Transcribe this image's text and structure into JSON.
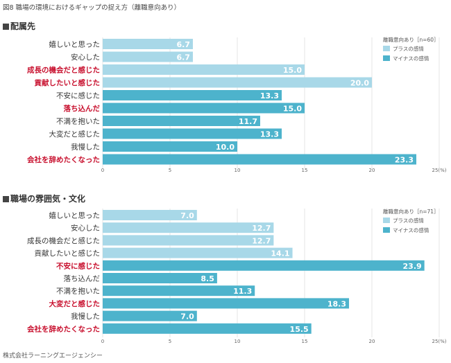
{
  "figure_title": "図8 職場の環境におけるギャップの捉え方（離職意向あり）",
  "footer": "株式会社ラーニングエージェンシー",
  "colors": {
    "plus": "#a8d8e8",
    "minus": "#4db3cc",
    "highlight": "#c8102e",
    "text": "#333333"
  },
  "legend_labels": {
    "plus": "プラスの感情",
    "minus": "マイナスの感情"
  },
  "chart_data": [
    {
      "type": "bar",
      "orientation": "horizontal",
      "title": "配属先",
      "legend_title": "離職意向あり［n=60］",
      "categories": [
        "嬉しいと思った",
        "安心した",
        "成長の機会だと感じた",
        "貢献したいと感じた",
        "不安に感じた",
        "落ち込んだ",
        "不満を抱いた",
        "大変だと感じた",
        "我慢した",
        "会社を辞めたくなった"
      ],
      "values": [
        6.7,
        6.7,
        15.0,
        20.0,
        13.3,
        15.0,
        11.7,
        13.3,
        10.0,
        23.3
      ],
      "value_labels": [
        "6.7",
        "6.7",
        "15.0",
        "20.0",
        "13.3",
        "15.0",
        "11.7",
        "13.3",
        "10.0",
        "23.3"
      ],
      "emotion": [
        "plus",
        "plus",
        "plus",
        "plus",
        "minus",
        "minus",
        "minus",
        "minus",
        "minus",
        "minus"
      ],
      "highlighted": [
        false,
        false,
        true,
        true,
        false,
        true,
        false,
        false,
        false,
        true
      ],
      "x_ticks": [
        "0",
        "5",
        "10",
        "15",
        "20",
        "25(%)"
      ],
      "xlim": [
        0,
        25
      ]
    },
    {
      "type": "bar",
      "orientation": "horizontal",
      "title": "職場の雰囲気・文化",
      "legend_title": "離職意向あり［n=71］",
      "categories": [
        "嬉しいと思った",
        "安心した",
        "成長の機会だと感じた",
        "貢献したいと感じた",
        "不安に感じた",
        "落ち込んだ",
        "不満を抱いた",
        "大変だと感じた",
        "我慢した",
        "会社を辞めたくなった"
      ],
      "values": [
        7.0,
        12.7,
        12.7,
        14.1,
        23.9,
        8.5,
        11.3,
        18.3,
        7.0,
        15.5
      ],
      "value_labels": [
        "7.0",
        "12.7",
        "12.7",
        "14.1",
        "23.9",
        "8.5",
        "11.3",
        "18.3",
        "7.0",
        "15.5"
      ],
      "emotion": [
        "plus",
        "plus",
        "plus",
        "plus",
        "minus",
        "minus",
        "minus",
        "minus",
        "minus",
        "minus"
      ],
      "highlighted": [
        false,
        false,
        false,
        false,
        true,
        false,
        false,
        true,
        false,
        true
      ],
      "x_ticks": [
        "0",
        "5",
        "10",
        "15",
        "20",
        "25(%)"
      ],
      "xlim": [
        0,
        25
      ]
    }
  ]
}
